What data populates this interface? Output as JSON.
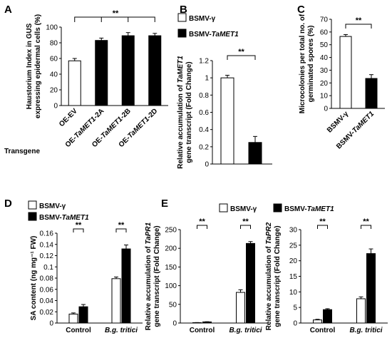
{
  "chart_data": [
    {
      "panel": "A",
      "type": "bar",
      "ylabel": [
        "Haustorium Index in GUS",
        "expressing  epidermal cells (%)"
      ],
      "ylim": [
        0,
        100
      ],
      "yticks": [
        0,
        20,
        40,
        60,
        80,
        100
      ],
      "xlabel": "Transgene",
      "categories": [
        "OE-EV",
        "OE-TaMET1-2A",
        "OE-TaMET1-2B",
        "OE-TaMET1-2D"
      ],
      "values": [
        57,
        83,
        89,
        89
      ],
      "errors": [
        3,
        3,
        4,
        3
      ],
      "colors": [
        "#ffffff",
        "#000000",
        "#000000",
        "#000000"
      ],
      "significance": "**"
    },
    {
      "panel": "B",
      "type": "bar",
      "ylabel": [
        "Relative accumulation of TaMET1",
        "gene transcript (Fold Change)"
      ],
      "ylim": [
        0,
        1.2
      ],
      "yticks": [
        0,
        0.2,
        0.4,
        0.6,
        0.8,
        1,
        1.2
      ],
      "categories": [
        "BSMV-γ",
        "BSMV-TaMET1"
      ],
      "values": [
        1.0,
        0.25
      ],
      "errors": [
        0.03,
        0.07
      ],
      "legend": [
        "BSMV-γ",
        "BSMV-TaMET1"
      ],
      "significance": "**"
    },
    {
      "panel": "C",
      "type": "bar",
      "ylabel": [
        "Microcolonies per total no. of",
        "germinated spores (%)"
      ],
      "ylim": [
        0,
        70
      ],
      "yticks": [
        0,
        10,
        20,
        30,
        40,
        50,
        60,
        70
      ],
      "categories": [
        "BSMV-γ",
        "BSMV-TaMET1"
      ],
      "values": [
        56.5,
        23.5
      ],
      "errors": [
        1.5,
        3
      ],
      "significance": "**"
    },
    {
      "panel": "D",
      "type": "bar",
      "ylabel": [
        "SA content (ng mg⁻¹ FW)"
      ],
      "ylim": [
        0,
        0.16
      ],
      "yticks": [
        0,
        0.02,
        0.04,
        0.06,
        0.08,
        0.1,
        0.12,
        0.14,
        0.16
      ],
      "categories": [
        "Control",
        "B.g. tritici"
      ],
      "series": [
        {
          "name": "BSMV-γ",
          "values": [
            0.016,
            0.079
          ],
          "errors": [
            0.002,
            0.003
          ]
        },
        {
          "name": "BSMV-TaMET1",
          "values": [
            0.029,
            0.132
          ],
          "errors": [
            0.004,
            0.007
          ]
        }
      ],
      "significance": [
        "**",
        "**"
      ]
    },
    {
      "panel": "E",
      "type": "bar",
      "ylabel": [
        "Relative accumulation of TaPR1",
        "gene transcript (Fold Change)"
      ],
      "ylim": [
        0,
        250
      ],
      "yticks": [
        0,
        50,
        100,
        150,
        200,
        250
      ],
      "categories": [
        "Control",
        "B.g. tritici"
      ],
      "series": [
        {
          "name": "BSMV-γ",
          "values": [
            1,
            82
          ],
          "errors": [
            0.3,
            7
          ]
        },
        {
          "name": "BSMV-TaMET1",
          "values": [
            3,
            213
          ],
          "errors": [
            0.5,
            5
          ]
        }
      ],
      "significance": [
        "**",
        "**"
      ]
    },
    {
      "panel": "",
      "type": "bar",
      "ylabel": [
        "Relative accumulation of TaPR2",
        "gene transcript (Fold Change)"
      ],
      "ylim": [
        0,
        30
      ],
      "yticks": [
        0,
        5,
        10,
        15,
        20,
        25,
        30
      ],
      "categories": [
        "Control",
        "B.g. tritici"
      ],
      "series": [
        {
          "name": "BSMV-γ",
          "values": [
            1,
            7.8
          ],
          "errors": [
            0.2,
            0.6
          ]
        },
        {
          "name": "BSMV-TaMET1",
          "values": [
            4.3,
            22.3
          ],
          "errors": [
            0.3,
            1.5
          ]
        }
      ],
      "significance": [
        "**",
        "**"
      ]
    }
  ],
  "legend": {
    "white_label_prefix": "BSMV-γ",
    "black_label_prefix": "BSMV-",
    "black_label_italic": "TaMET1"
  }
}
